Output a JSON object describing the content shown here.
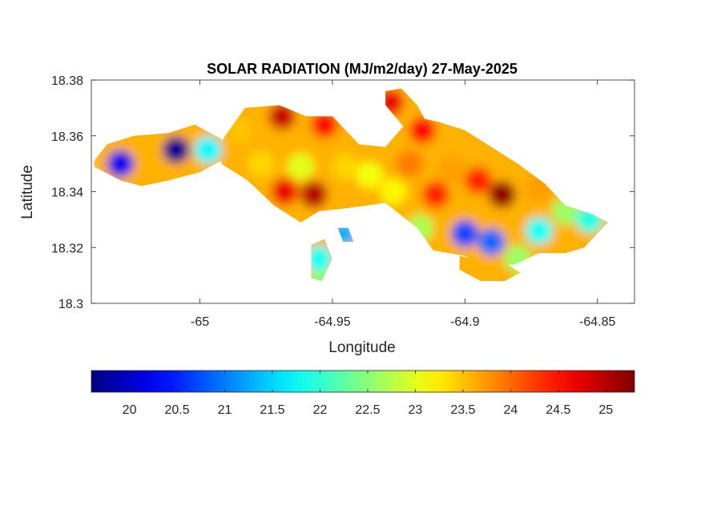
{
  "chart_data": {
    "type": "heatmap",
    "title": "SOLAR RADIATION (MJ/m2/day) 27-May-2025",
    "xlabel": "Longitude",
    "ylabel": "Latitude",
    "xlim": [
      -65.041,
      -64.836
    ],
    "ylim": [
      18.3,
      18.38
    ],
    "xticks": [
      -65,
      -64.95,
      -64.9,
      -64.85
    ],
    "xtick_labels": [
      "-65",
      "-64.95",
      "-64.9",
      "-64.85"
    ],
    "yticks": [
      18.3,
      18.32,
      18.34,
      18.36,
      18.38
    ],
    "ytick_labels": [
      "18.3",
      "18.32",
      "18.34",
      "18.36",
      "18.38"
    ],
    "colormap": "jet",
    "colorbar": {
      "location": "bottom",
      "range": [
        19.6,
        25.3
      ],
      "ticks": [
        20,
        20.5,
        21,
        21.5,
        22,
        22.5,
        23,
        23.5,
        24,
        24.5,
        25
      ],
      "tick_labels": [
        "20",
        "20.5",
        "21",
        "21.5",
        "22",
        "22.5",
        "23",
        "23.5",
        "24",
        "24.5",
        "25"
      ]
    },
    "regions": [
      {
        "lon": [
          -65.04,
          -65.035,
          -65.025,
          -65.012,
          -65.002,
          -64.992,
          -64.992,
          -65.0,
          -65.012,
          -65.022,
          -65.03,
          -65.04
        ],
        "lat": [
          18.351,
          18.357,
          18.36,
          18.361,
          18.364,
          18.359,
          18.351,
          18.347,
          18.344,
          18.342,
          18.344,
          18.349
        ]
      },
      {
        "lon": [
          -64.992,
          -64.983,
          -64.97,
          -64.96,
          -64.95,
          -64.94,
          -64.93,
          -64.92,
          -64.91,
          -64.9,
          -64.89,
          -64.88,
          -64.87,
          -64.862,
          -64.852,
          -64.846,
          -64.855,
          -64.862,
          -64.872,
          -64.881,
          -64.892,
          -64.9,
          -64.912,
          -64.918,
          -64.93,
          -64.945,
          -64.955,
          -64.962,
          -64.972,
          -64.982,
          -64.992
        ],
        "lat": [
          18.358,
          18.37,
          18.371,
          18.367,
          18.367,
          18.357,
          18.356,
          18.367,
          18.365,
          18.362,
          18.356,
          18.35,
          18.343,
          18.335,
          18.332,
          18.329,
          18.32,
          18.318,
          18.318,
          18.314,
          18.313,
          18.317,
          18.319,
          18.327,
          18.336,
          18.334,
          18.333,
          18.329,
          18.335,
          18.344,
          18.35
        ]
      },
      {
        "lon": [
          -64.958,
          -64.953,
          -64.95,
          -64.954,
          -64.958
        ],
        "lat": [
          18.321,
          18.323,
          18.316,
          18.308,
          18.309
        ]
      },
      {
        "lon": [
          -64.948,
          -64.944,
          -64.942,
          -64.946
        ],
        "lat": [
          18.327,
          18.327,
          18.322,
          18.322
        ]
      },
      {
        "lon": [
          -64.93,
          -64.924,
          -64.918,
          -64.914,
          -64.922,
          -64.93
        ],
        "lat": [
          18.376,
          18.377,
          18.371,
          18.364,
          18.362,
          18.371
        ]
      },
      {
        "lon": [
          -64.902,
          -64.892,
          -64.884,
          -64.879,
          -64.885,
          -64.894,
          -64.902
        ],
        "lat": [
          18.317,
          18.315,
          18.314,
          18.311,
          18.308,
          18.308,
          18.312
        ]
      }
    ],
    "centers": [
      {
        "lon": -65.009,
        "lat": 18.355,
        "value": 19.7
      },
      {
        "lon": -65.03,
        "lat": 18.35,
        "value": 20.2
      },
      {
        "lon": -64.997,
        "lat": 18.355,
        "value": 21.7
      },
      {
        "lon": -64.985,
        "lat": 18.362,
        "value": 23.5
      },
      {
        "lon": -64.977,
        "lat": 18.35,
        "value": 23.4
      },
      {
        "lon": -64.969,
        "lat": 18.367,
        "value": 24.9
      },
      {
        "lon": -64.968,
        "lat": 18.34,
        "value": 24.7
      },
      {
        "lon": -64.953,
        "lat": 18.364,
        "value": 24.6
      },
      {
        "lon": -64.957,
        "lat": 18.339,
        "value": 25.0
      },
      {
        "lon": -64.962,
        "lat": 18.349,
        "value": 23.0
      },
      {
        "lon": -64.945,
        "lat": 18.349,
        "value": 23.4
      },
      {
        "lon": -64.936,
        "lat": 18.346,
        "value": 23.1
      },
      {
        "lon": -64.927,
        "lat": 18.34,
        "value": 23.2
      },
      {
        "lon": -64.921,
        "lat": 18.35,
        "value": 23.9
      },
      {
        "lon": -64.916,
        "lat": 18.362,
        "value": 24.6
      },
      {
        "lon": -64.911,
        "lat": 18.339,
        "value": 24.4
      },
      {
        "lon": -64.905,
        "lat": 18.348,
        "value": 23.7
      },
      {
        "lon": -64.895,
        "lat": 18.344,
        "value": 24.4
      },
      {
        "lon": -64.886,
        "lat": 18.339,
        "value": 25.2
      },
      {
        "lon": -64.872,
        "lat": 18.341,
        "value": 23.7
      },
      {
        "lon": -64.862,
        "lat": 18.333,
        "value": 22.6
      },
      {
        "lon": -64.853,
        "lat": 18.33,
        "value": 21.9
      },
      {
        "lon": -64.9,
        "lat": 18.325,
        "value": 20.7
      },
      {
        "lon": -64.89,
        "lat": 18.322,
        "value": 20.9
      },
      {
        "lon": -64.917,
        "lat": 18.327,
        "value": 22.7
      },
      {
        "lon": -64.872,
        "lat": 18.326,
        "value": 21.8
      },
      {
        "lon": -64.88,
        "lat": 18.316,
        "value": 22.6
      },
      {
        "lon": -64.928,
        "lat": 18.372,
        "value": 24.7
      },
      {
        "lon": -64.955,
        "lat": 18.316,
        "value": 21.8
      },
      {
        "lon": -64.946,
        "lat": 18.325,
        "value": 21.3
      },
      {
        "lon": -64.954,
        "lat": 18.307,
        "value": 22.5
      }
    ]
  }
}
